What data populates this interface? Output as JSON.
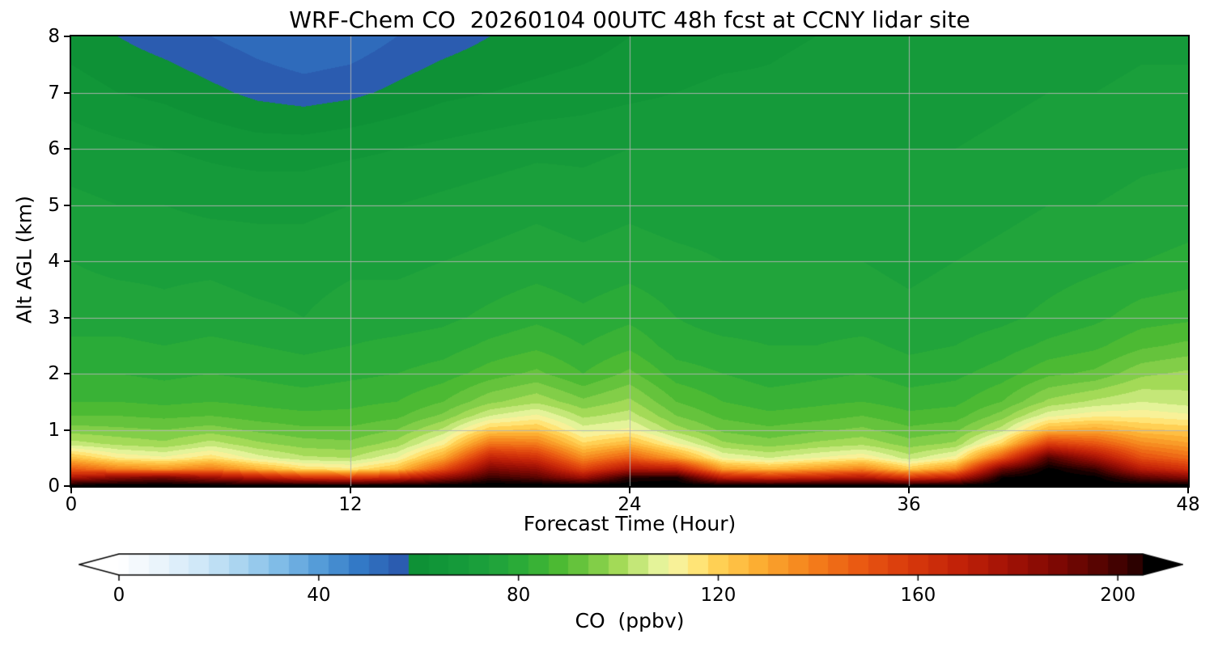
{
  "chart_data": {
    "type": "heatmap",
    "title": "WRF-Chem CO  20260104 00UTC 48h fcst at CCNY lidar site",
    "xlabel": "Forecast Time (Hour)",
    "ylabel": "Alt AGL (km)",
    "colorbar_label": "CO  (ppbv)",
    "x_range": [
      0,
      48
    ],
    "y_range": [
      0,
      8
    ],
    "x_ticks": [
      0,
      12,
      24,
      36,
      48
    ],
    "y_ticks": [
      0,
      1,
      2,
      3,
      4,
      5,
      6,
      7,
      8
    ],
    "grid": true,
    "gridline_color": "#b4b4b4",
    "colorbar": {
      "vmin": 0,
      "vmax": 205,
      "ticks": [
        0,
        40,
        80,
        120,
        160,
        200
      ],
      "extend": "both"
    },
    "x": [
      0,
      2,
      4,
      6,
      8,
      10,
      12,
      14,
      16,
      18,
      20,
      22,
      24,
      26,
      28,
      30,
      32,
      34,
      36,
      38,
      40,
      42,
      44,
      46,
      48
    ],
    "y": [
      0,
      0.15,
      0.3,
      0.5,
      0.75,
      1,
      1.25,
      1.5,
      2,
      2.5,
      3,
      4,
      5,
      6,
      7,
      8
    ],
    "values": [
      [
        215,
        215,
        215,
        215,
        215,
        215,
        215,
        215,
        215,
        215,
        215,
        215,
        215,
        215,
        215,
        215,
        215,
        215,
        215,
        215,
        215,
        215,
        215,
        215,
        215
      ],
      [
        175,
        185,
        190,
        180,
        172,
        162,
        158,
        165,
        182,
        202,
        196,
        180,
        205,
        208,
        170,
        164,
        168,
        174,
        160,
        170,
        210,
        215,
        212,
        196,
        186
      ],
      [
        148,
        138,
        134,
        140,
        128,
        118,
        115,
        124,
        152,
        188,
        182,
        155,
        175,
        172,
        132,
        126,
        132,
        138,
        122,
        134,
        192,
        212,
        202,
        172,
        162
      ],
      [
        124,
        114,
        111,
        117,
        108,
        103,
        102,
        110,
        130,
        168,
        162,
        136,
        148,
        132,
        110,
        106,
        110,
        114,
        104,
        112,
        150,
        198,
        178,
        152,
        144
      ],
      [
        104,
        101,
        99,
        104,
        99,
        96,
        95,
        100,
        113,
        142,
        140,
        119,
        126,
        111,
        99,
        96,
        99,
        101,
        96,
        99,
        119,
        158,
        150,
        136,
        131
      ],
      [
        96,
        95,
        94,
        96,
        93,
        91,
        91,
        94,
        103,
        121,
        123,
        108,
        111,
        100,
        93,
        91,
        93,
        95,
        91,
        93,
        104,
        126,
        129,
        123,
        121
      ],
      [
        90,
        90,
        89,
        90,
        88,
        87,
        87,
        89,
        95,
        106,
        111,
        101,
        104,
        94,
        89,
        87,
        88,
        90,
        87,
        88,
        96,
        109,
        113,
        113,
        111
      ],
      [
        86,
        86,
        85,
        86,
        85,
        84,
        85,
        86,
        90,
        97,
        101,
        95,
        99,
        90,
        86,
        84,
        85,
        86,
        84,
        85,
        90,
        99,
        103,
        106,
        104
      ],
      [
        82,
        82,
        81,
        82,
        81,
        80,
        81,
        82,
        84,
        88,
        91,
        86,
        91,
        84,
        82,
        80,
        81,
        82,
        80,
        81,
        84,
        89,
        91,
        97,
        99
      ],
      [
        79,
        79,
        78,
        79,
        78,
        77,
        78,
        79,
        80,
        83,
        85,
        82,
        85,
        80,
        79,
        78,
        78,
        79,
        77,
        78,
        80,
        83,
        85,
        89,
        91
      ],
      [
        76,
        76,
        75,
        76,
        75,
        74,
        76,
        76,
        77,
        79,
        81,
        79,
        81,
        78,
        76,
        76,
        76,
        76,
        75,
        76,
        77,
        79,
        81,
        84,
        85
      ],
      [
        74,
        73,
        73,
        73,
        72,
        72,
        73,
        73,
        74,
        75,
        76,
        75,
        76,
        75,
        74,
        74,
        74,
        74,
        73,
        74,
        75,
        76,
        77,
        78,
        79
      ],
      [
        71,
        70,
        70,
        69,
        69,
        69,
        70,
        70,
        71,
        72,
        73,
        72,
        73,
        72,
        72,
        72,
        72,
        72,
        71,
        72,
        73,
        74,
        74,
        75,
        76
      ],
      [
        68,
        67,
        66,
        65,
        64,
        64,
        65,
        66,
        67,
        68,
        69,
        69,
        70,
        70,
        70,
        70,
        70,
        70,
        70,
        70,
        71,
        72,
        72,
        73,
        73
      ],
      [
        64,
        62,
        61,
        59,
        57,
        56,
        57,
        59,
        61,
        62,
        63,
        64,
        65,
        66,
        67,
        67,
        68,
        68,
        68,
        68,
        69,
        70,
        70,
        71,
        71
      ],
      [
        60,
        58,
        56,
        54,
        52,
        50,
        51,
        54,
        56,
        58,
        59,
        60,
        62,
        63,
        64,
        65,
        66,
        66,
        66,
        66,
        67,
        68,
        68,
        69,
        69
      ]
    ],
    "colormap": {
      "stops": [
        [
          -8,
          "#ffffff"
        ],
        [
          0,
          "#fdfeff"
        ],
        [
          8,
          "#eaf4fb"
        ],
        [
          16,
          "#d0e8f8"
        ],
        [
          24,
          "#abd5f0"
        ],
        [
          32,
          "#80bce7"
        ],
        [
          40,
          "#559cd8"
        ],
        [
          48,
          "#3379c6"
        ],
        [
          56,
          "#2b5cb0"
        ],
        [
          58,
          "#0c8f35"
        ],
        [
          66,
          "#139839"
        ],
        [
          74,
          "#1ca13c"
        ],
        [
          82,
          "#2fae37"
        ],
        [
          88,
          "#4cba33"
        ],
        [
          94,
          "#72c841"
        ],
        [
          100,
          "#a3da57"
        ],
        [
          106,
          "#d4ee88"
        ],
        [
          110,
          "#f3f7a9"
        ],
        [
          115,
          "#ffe97e"
        ],
        [
          120,
          "#ffd054"
        ],
        [
          128,
          "#fcae32"
        ],
        [
          138,
          "#f5821c"
        ],
        [
          148,
          "#ea5a12"
        ],
        [
          158,
          "#d93a0c"
        ],
        [
          168,
          "#c22208"
        ],
        [
          178,
          "#a31205"
        ],
        [
          188,
          "#7d0803"
        ],
        [
          198,
          "#4f0301"
        ],
        [
          206,
          "#200000"
        ],
        [
          212,
          "#000000"
        ]
      ],
      "level_step": 4
    }
  }
}
